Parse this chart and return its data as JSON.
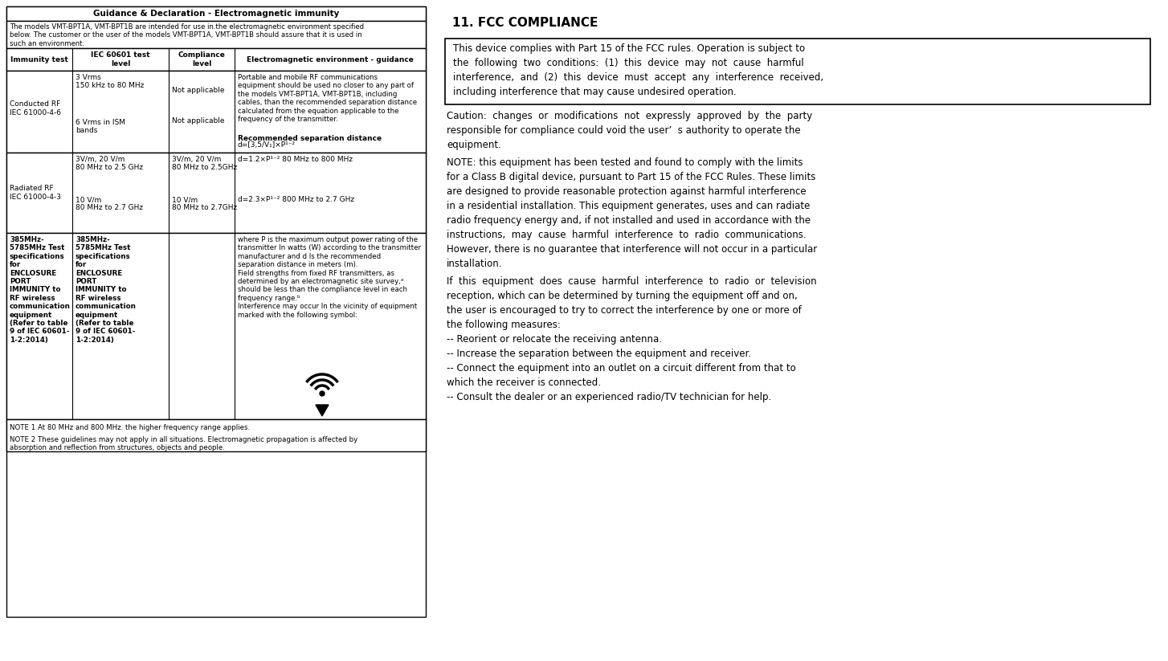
{
  "title_left": "Guidance & Declaration - Electromagnetic immunity",
  "intro_text": "The models VMT-BPT1A, VMT-BPT1B are intended for use in.the electromagnetic environment specified\nbelow. The customer or the user of the models VMT-BPT1A, VMT-BPT1B should assure that it is used in\nsuch an environment.",
  "col_headers": [
    "Immunity test",
    "IEC 60601 test\nlevel",
    "Compliance\nlevel",
    "Electromagnetic environment - guidance"
  ],
  "notes": [
    "NOTE 1 At 80 MHz and 800 MHz. the higher frequency range applies.",
    "NOTE 2 These guidelines may not apply in all situations. Electromagnetic propagation is affected by\nabsorption and reflection from structures, objects and people."
  ],
  "title_right": "11. FCC COMPLIANCE",
  "box_lines": [
    "This device complies with Part 15 of the FCC rules. Operation is subject to",
    "the  following  two  conditions:  (1)  this  device  may  not  cause  harmful",
    "interference,  and  (2)  this  device  must  accept  any  interference  received,",
    "including interference that may cause undesired operation."
  ],
  "caution_lines": [
    "Caution:  changes  or  modifications  not  expressly  approved  by  the  party",
    "responsible for compliance could void the user’  s authority to operate the",
    "equipment."
  ],
  "note_lines": [
    "NOTE: this equipment has been tested and found to comply with the limits",
    "for a Class B digital device, pursuant to Part 15 of the FCC Rules. These limits",
    "are designed to provide reasonable protection against harmful interference",
    "in a residential installation. This equipment generates, uses and can radiate",
    "radio frequency energy and, if not installed and used in accordance with the",
    "instructions,  may  cause  harmful  interference  to  radio  communications.",
    "However, there is no guarantee that interference will not occur in a particular",
    "installation."
  ],
  "if_lines": [
    "If  this  equipment  does  cause  harmful  interference  to  radio  or  television",
    "reception, which can be determined by turning the equipment off and on,",
    "the user is encouraged to try to correct the interference by one or more of",
    "the following measures:"
  ],
  "bullet_lines": [
    "-- Reorient or relocate the receiving antenna.",
    "-- Increase the separation between the equipment and receiver.",
    "-- Connect the equipment into an outlet on a circuit different from that to",
    "which the receiver is connected.",
    "-- Consult the dealer or an experienced radio/TV technician for help."
  ],
  "bg_color": "#ffffff",
  "text_color": "#000000",
  "border_color": "#000000"
}
